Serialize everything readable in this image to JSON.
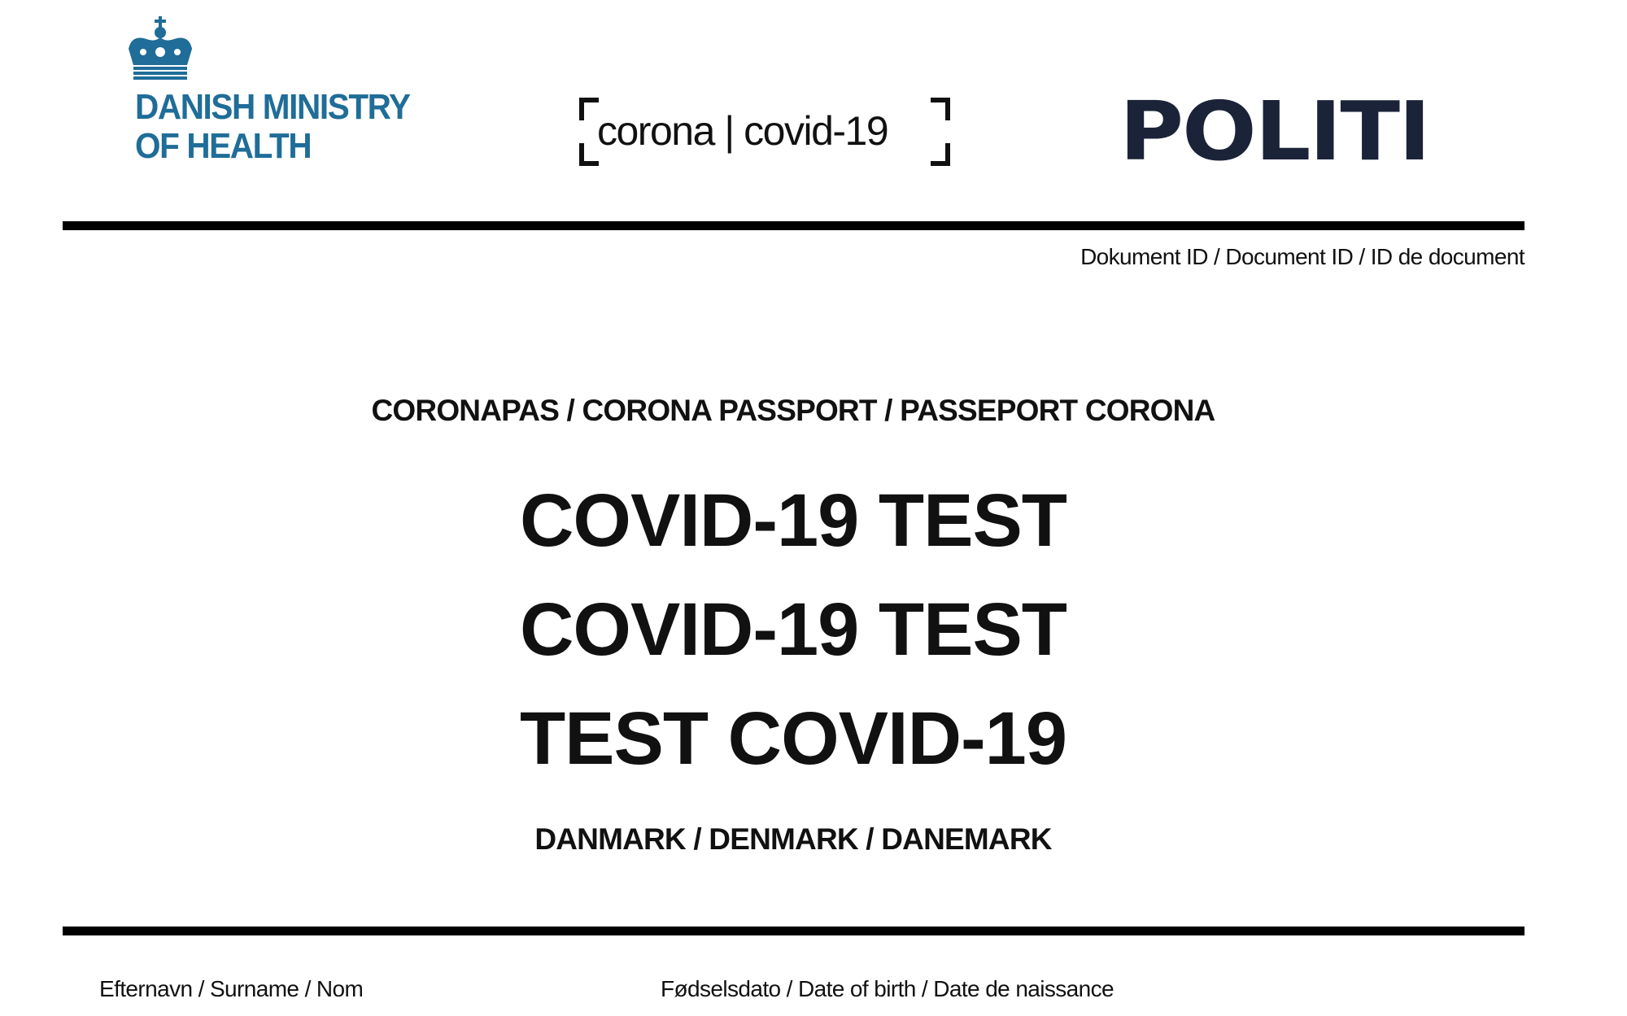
{
  "header": {
    "ministry_logo": {
      "line1": "DANISH MINISTRY",
      "line2": "OF HEALTH",
      "icon": "crown-icon",
      "color": "#1f6d98"
    },
    "campaign_logo": {
      "text": "corona | covid-19"
    },
    "police_logo": {
      "text": "POLITI",
      "color": "#1b2338"
    }
  },
  "document_id_label": "Dokument ID / Document ID / ID de document",
  "subtitle": "CORONAPAS / CORONA PASSPORT / PASSEPORT CORONA",
  "titles": [
    "COVID-19 TEST",
    "COVID-19 TEST",
    "TEST COVID-19"
  ],
  "country": "DANMARK / DENMARK / DANEMARK",
  "fields": {
    "surname_label": "Efternavn / Surname / Nom",
    "dob_label": "Fødselsdato / Date of birth / Date de naissance"
  }
}
